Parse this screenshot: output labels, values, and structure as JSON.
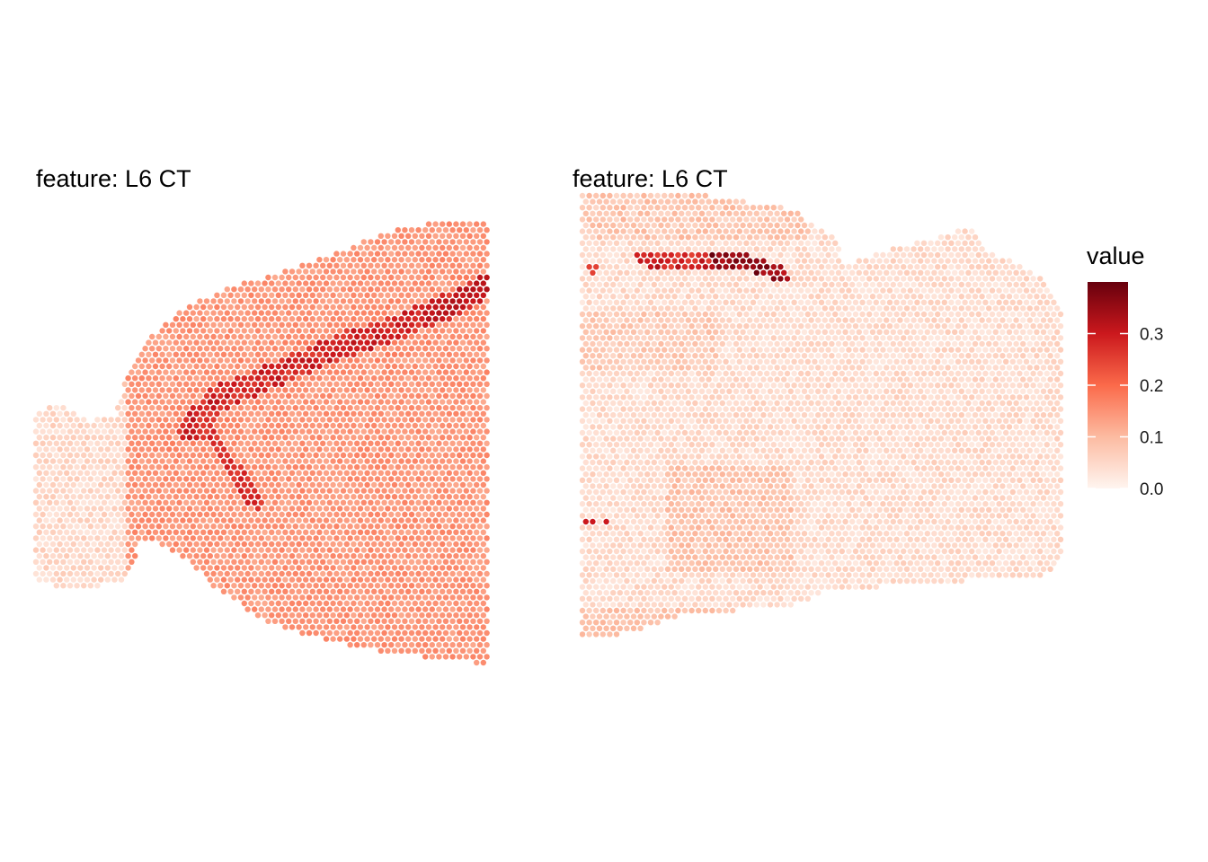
{
  "chart_data": [
    {
      "type": "scatter",
      "subtype": "spatial-spot-map",
      "title": "feature:  L6 CT",
      "value_range": [
        0,
        0.4
      ],
      "description_regions": [
        {
          "region": "background tissue",
          "value": 0.04
        },
        {
          "region": "mid layer",
          "value": 0.1
        },
        {
          "region": "cortical L6 band",
          "value": 0.25
        },
        {
          "region": "band peak",
          "value": 0.3
        }
      ]
    },
    {
      "type": "scatter",
      "subtype": "spatial-spot-map",
      "title": "feature:  L6 CT",
      "value_range": [
        0,
        0.4
      ],
      "description_regions": [
        {
          "region": "background tissue",
          "value": 0.02
        },
        {
          "region": "top band",
          "value": 0.25
        },
        {
          "region": "band peak",
          "value": 0.4
        },
        {
          "region": "isolated spots",
          "value": 0.3
        }
      ]
    }
  ],
  "legend": {
    "title": "value",
    "ticks": [
      "0.0",
      "0.1",
      "0.2",
      "0.3"
    ],
    "tick_values": [
      0,
      0.1,
      0.2,
      0.3
    ],
    "max": 0.4,
    "colors": [
      "#fff5f0",
      "#fcbba1",
      "#fb6a4a",
      "#cb181d",
      "#67000d"
    ]
  }
}
